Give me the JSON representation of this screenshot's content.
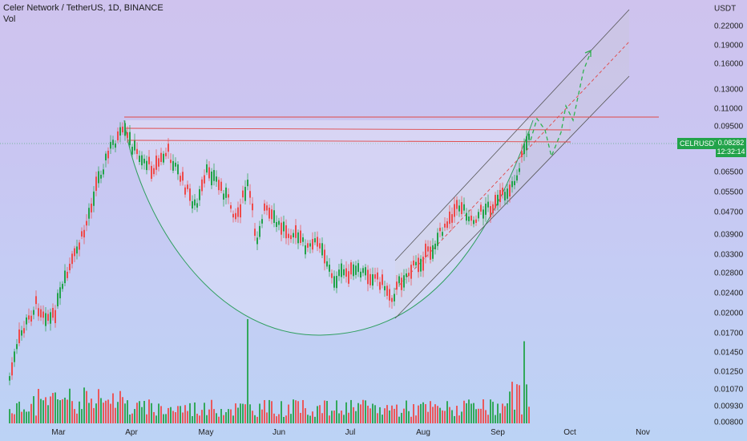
{
  "legend": {
    "title": "Celer Network / TetherUS, 1D, BINANCE",
    "vol": "Vol"
  },
  "price_axis": {
    "unit": "USDT",
    "ticks": [
      "0.22000",
      "0.19000",
      "0.16000",
      "0.13000",
      "0.11000",
      "0.09500",
      "0.06500",
      "0.05500",
      "0.04700",
      "0.03900",
      "0.03300",
      "0.02800",
      "0.02400",
      "0.02000",
      "0.01700",
      "0.01450",
      "0.01250",
      "0.01070",
      "0.00930",
      "0.00800"
    ]
  },
  "time_axis": {
    "ticks": [
      "Mar",
      "Apr",
      "May",
      "Jun",
      "Jul",
      "Aug",
      "Sep",
      "Oct",
      "Nov"
    ]
  },
  "symbol_tag": "CELRUSDT",
  "price_tag": {
    "price": "0.08282",
    "countdown": "12:32:14"
  },
  "colors": {
    "up": "#22a34a",
    "down": "#ef4a4a",
    "level_line": "#e04848",
    "cup_curve": "#2e9e5e",
    "channel": "#555555",
    "projection": "#2fb24f"
  }
}
